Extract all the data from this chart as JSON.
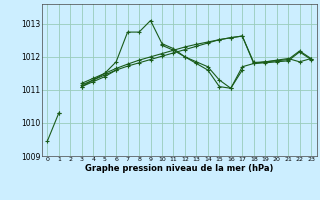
{
  "background_color": "#cceeff",
  "grid_color": "#99ccbb",
  "line_color": "#1a5c1a",
  "xlabel": "Graphe pression niveau de la mer (hPa)",
  "xlim": [
    -0.5,
    23.5
  ],
  "ylim": [
    1009.0,
    1013.6
  ],
  "yticks": [
    1009,
    1010,
    1011,
    1012,
    1013
  ],
  "xticks": [
    0,
    1,
    2,
    3,
    4,
    5,
    6,
    7,
    8,
    9,
    10,
    11,
    12,
    13,
    14,
    15,
    16,
    17,
    18,
    19,
    20,
    21,
    22,
    23
  ],
  "series": [
    [
      1009.45,
      1010.3,
      null,
      null,
      null,
      null,
      null,
      null,
      null,
      null,
      null,
      null,
      null,
      null,
      null,
      null,
      null,
      null,
      null,
      null,
      null,
      null,
      null,
      null
    ],
    [
      null,
      1010.3,
      null,
      1011.1,
      1011.3,
      1011.5,
      1011.85,
      1012.75,
      1012.75,
      1013.1,
      1012.4,
      1012.25,
      1012.0,
      1011.8,
      1011.6,
      1011.1,
      1011.05,
      1011.6,
      null,
      null,
      null,
      null,
      null,
      null
    ],
    [
      null,
      null,
      null,
      1011.1,
      1011.25,
      1011.4,
      1011.6,
      null,
      null,
      null,
      1012.35,
      1012.2,
      1012.0,
      1011.85,
      1011.7,
      1011.3,
      1011.05,
      1011.7,
      1011.8,
      1011.85,
      1011.9,
      1011.95,
      1011.85,
      1011.95
    ],
    [
      null,
      null,
      null,
      1011.15,
      1011.3,
      1011.45,
      1011.6,
      1011.72,
      1011.82,
      1011.92,
      1012.02,
      1012.12,
      1012.22,
      1012.32,
      1012.42,
      1012.52,
      1012.58,
      1012.63,
      1011.8,
      1011.82,
      1011.85,
      1011.88,
      1012.15,
      1011.92
    ],
    [
      null,
      null,
      null,
      1011.2,
      1011.35,
      1011.5,
      1011.65,
      1011.78,
      1011.9,
      1012.0,
      1012.1,
      1012.2,
      1012.3,
      1012.38,
      1012.45,
      1012.52,
      1012.58,
      1012.63,
      1011.83,
      1011.85,
      1011.88,
      1011.92,
      1012.18,
      1011.95
    ]
  ]
}
